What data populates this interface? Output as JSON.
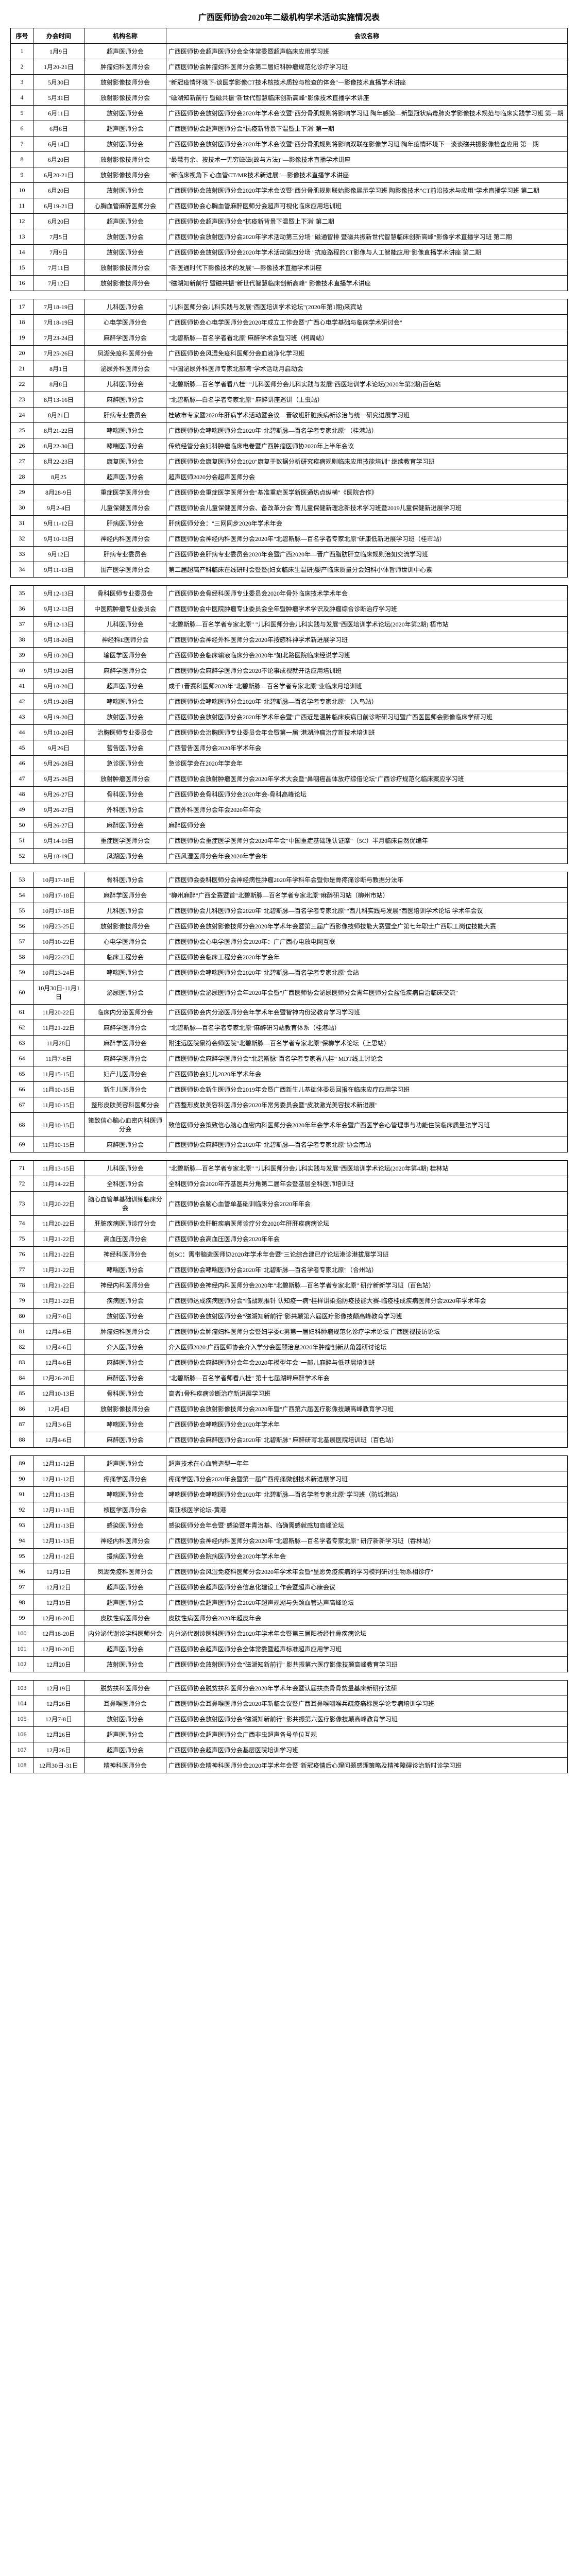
{
  "title": "广西医师协会2020年二级机构学术活动实施情况表",
  "headers": {
    "seq": "序号",
    "time": "办会时间",
    "org": "机构名称",
    "name": "会议名称"
  },
  "sections": [
    {
      "rows": [
        {
          "seq": "1",
          "time": "1月9日",
          "org": "超声医师分会",
          "name": "广西医师协会超声医师分会全体常委暨超声临床应用学习班"
        },
        {
          "seq": "2",
          "time": "1月20-21日",
          "org": "肿瘤妇科医师分会",
          "name": "广西医师协会肿瘤妇科医师分会第二届妇科肿瘤规范化诊疗学习班"
        },
        {
          "seq": "3",
          "time": "5月30日",
          "org": "放射影像技师分会",
          "name": "\"新冠疫情环境下-谈医学影像CT技术核技术质控与检查的体会\"一影像技术直播学术讲座"
        },
        {
          "seq": "4",
          "time": "5月31日",
          "org": "放射影像技师分会",
          "name": "\"磁湖知新前行 暨磁共振\"新世代智慧临床创新高峰\"影像技术直播学术讲座"
        },
        {
          "seq": "5",
          "time": "6月11日",
          "org": "放射医师分会",
          "name": "广西医师协会放射医师分会2020年学术会议暨\"西分骨肌规则将影响学习班 陶年感染—新型冠状病毒肺炎学影像技术规范与临床实践学习班 第一期"
        },
        {
          "seq": "6",
          "time": "6月6日",
          "org": "超声医师分会",
          "name": "广西医师协会超声医师分会\"抗疫新背景下温暨上下消\"第一期"
        },
        {
          "seq": "7",
          "time": "6月14日",
          "org": "放射医师分会",
          "name": "广西医师协会放射医师分会2020年学术会议暨\"西分骨肌规则将影响双联在影像学习班 陶年疫情环境下一谈谈磁共振影像检查应用 第一期"
        },
        {
          "seq": "8",
          "time": "6月20日",
          "org": "放射影像技师分会",
          "name": "\"最慧有余、按技术一无穷磁磁(故与方法)\"—影像技术直播学术讲座"
        },
        {
          "seq": "9",
          "time": "6月20-21日",
          "org": "放射影像技师分会",
          "name": "\"新临床视角下 心血管CT/MR技术新进展\"—影像技术直播学术讲座"
        },
        {
          "seq": "10",
          "time": "6月20日",
          "org": "放射医师分会",
          "name": "广西医师协会放射医师分会2020年学术会议暨\"西分骨肌规则联始影像展示学习班 陶影像技术\"CT前沿技术与应用\"学术直播学习班 第二期"
        },
        {
          "seq": "11",
          "time": "6月19-21日",
          "org": "心胸血管麻醉医师分会",
          "name": "广西医师协会心胸血管麻醉医师分会超声可视化临床应用培训班"
        },
        {
          "seq": "12",
          "time": "6月20日",
          "org": "超声医师分会",
          "name": "广西医师协会超声医师分会\"抗疫新背景下温暨上下消\"第二期"
        },
        {
          "seq": "13",
          "time": "7月5日",
          "org": "放射医师分会",
          "name": "广西医师协会放射医师分会2020年学术活动第三分场 \"磁通智排 暨磁共振新世代智慧临床创新高峰\"影像学术直播学习班 第二期"
        },
        {
          "seq": "14",
          "time": "7月9日",
          "org": "放射医师分会",
          "name": "广西医师协会放射医师分会2020年学术活动第四分场 \"抗疫路程的CT影像与人工智能应用\"影像直播学术讲座 第二期"
        },
        {
          "seq": "15",
          "time": "7月11日",
          "org": "放射影像技师分会",
          "name": "\"新医通时代下影像技术的发展\"—影像技术直播学术讲座"
        },
        {
          "seq": "16",
          "time": "7月12日",
          "org": "放射影像技师分会",
          "name": "\"磁湖知新前行 暨磁共振\"新世代智慧临床创新高峰\" 影像技术直播学术讲座"
        }
      ]
    },
    {
      "rows": [
        {
          "seq": "17",
          "time": "7月18-19日",
          "org": "儿科医师分会",
          "name": "\"儿科医师分会儿科实践与发展\"西医培训学术论坛\"(2020年第1期)来宾站"
        },
        {
          "seq": "18",
          "time": "7月18-19日",
          "org": "心电学医师分会",
          "name": "广西医师协会心电学医师分会2020年成立工作会暨\"广西心电学基础与临床学术研讨会\""
        },
        {
          "seq": "19",
          "time": "7月23-24日",
          "org": "麻醉学医师分会",
          "name": "\"北碧斯脉—百名学者看北原\"麻醉学术会暨习班（柯周站）"
        },
        {
          "seq": "20",
          "time": "7月25-26日",
          "org": "凤湖免疫科医师分会",
          "name": "广西医师协会风湿免疫科医师分会血液净化学习班"
        },
        {
          "seq": "21",
          "time": "8月1日",
          "org": "泌尿外科医师分会",
          "name": "\"中国泌尿外科医师专家北部湾\"学术活动月启动会"
        },
        {
          "seq": "22",
          "time": "8月8日",
          "org": "儿科医师分会",
          "name": "\"北碧斯脉—百名学者看八桂\" \"儿科医师分会儿科实践与发展\"西医培训学术论坛(2020年第2期)百色站"
        },
        {
          "seq": "23",
          "time": "8月13-16日",
          "org": "麻醉医师分会",
          "name": "\"北碧斯脉—白名学者专家北原\" 麻醉讲座巡讲（上虫站）"
        },
        {
          "seq": "24",
          "time": "8月21日",
          "org": "肝病专业委员会",
          "name": "桂敏市专家暨2020年肝病学术活动暨会议—晋敏班肝脏疾病新诊治与统一研究进展学习班"
        },
        {
          "seq": "25",
          "time": "8月21-22日",
          "org": "哮喘医师分会",
          "name": "广西医师协会哮喘医师分会2020年\"北碧斯脉—百名学者专家北原\"（桂港站）"
        },
        {
          "seq": "26",
          "time": "8月22-30日",
          "org": "哮喘医师分会",
          "name": "传统经管分会妇科肿瘤临床电卷暨广西肿瘤医师协2020年上半年会议"
        },
        {
          "seq": "27",
          "time": "8月22-23日",
          "org": "康复医师分会",
          "name": "广西医师协会康复医师分会2020\"康复于数据分析研究疾病规则临床应用技能培训\" 继续教育学习班"
        },
        {
          "seq": "28",
          "time": "8月25",
          "org": "超声医师分会",
          "name": "超声医师2020分会超声医师分会"
        },
        {
          "seq": "29",
          "time": "8月28-9日",
          "org": "重症医学医师分会",
          "name": "广西医师协会重症医学医师分会\"基准重症医学新医通热点纵横\"《医院合作》"
        },
        {
          "seq": "30",
          "time": "9月2-4日",
          "org": "儿童保健医师分会",
          "name": "广西医师协会儿童保健医师分会、备改革分会\"育儿童保健新理念新技术学习班暨2019儿童保健新进展学习班"
        },
        {
          "seq": "31",
          "time": "9月11-12日",
          "org": "肝病医师分会",
          "name": "肝病医师分会：\"三网同步2020年学术年会"
        },
        {
          "seq": "32",
          "time": "9月10-13日",
          "org": "神经内科医师分会",
          "name": "广西医师协会神经内科医师分会2020年\"北碧斯脉—百名学者专家北原\"研康低新进展学习班（桂市站）"
        },
        {
          "seq": "33",
          "time": "9月12日",
          "org": "肝病专业委员会",
          "name": "广西医师协会肝病专业委员会2020年会暨广西2020年—晋广西脂肪肝立临床规则治如交流学习班"
        },
        {
          "seq": "34",
          "time": "9月11-13日",
          "org": "围产医学医师分会",
          "name": "第二届超高产科临床在线研时会暨暨(妇女临床生温研)婴产临床质量分会妇科小体旨师世训中心素"
        }
      ]
    },
    {
      "rows": [
        {
          "seq": "35",
          "time": "9月12-13日",
          "org": "骨科医师专业委员会",
          "name": "广西医师协会骨经科医师专业委员会2020年骨外临床技术学术年会"
        },
        {
          "seq": "36",
          "time": "9月12-13日",
          "org": "中医院肿瘤专业委员会",
          "name": "广西医师协会中医院肿瘤专业委员会全年暨肿瘤学术学识及肿瘤综合诊断治疗学习班"
        },
        {
          "seq": "37",
          "time": "9月12-13日",
          "org": "儿科医师分会",
          "name": "\"北碧斯脉—百名学者专家北原\" \"儿科医师分会儿科实践与发展\"西医培训学术论坛(2020年第2期) 梧市站"
        },
        {
          "seq": "38",
          "time": "9月18-20日",
          "org": "神经科E医师分会",
          "name": "广西医师协会神经外科医师分会2020年按感科神学术新进展学习班"
        },
        {
          "seq": "39",
          "time": "9月10-20日",
          "org": "输医学医师分会",
          "name": "广西医师协会临床输液临床分会2020年\"如北路医院临床经说学习班"
        },
        {
          "seq": "40",
          "time": "9月19-20日",
          "org": "麻醉学医师分会",
          "name": "广西医师协会麻醉学医师分会2020不论事成视就开话应用培训班"
        },
        {
          "seq": "41",
          "time": "9月10-20日",
          "org": "超声医师分会",
          "name": "成千1晋赛科医师2020年\"北碧斯脉—百名学者专家北原\"业临床月培训班"
        },
        {
          "seq": "42",
          "time": "9月19-20日",
          "org": "哮喘医师分会",
          "name": "广西医师协会哮喘医师分会2020年\"北碧斯脉—百名学者专家北原\"（入鸟站）"
        },
        {
          "seq": "43",
          "time": "9月19-20日",
          "org": "放射医师分会",
          "name": "广西医师协会放射医师分会2020年学术年会暨\"广西近是温肿临床疾病日前诊断研习班暨广西医医师会影像临床学研习班"
        },
        {
          "seq": "44",
          "time": "9月10-20日",
          "org": "治胸医师专业委员会",
          "name": "广西医师协会治胸医师专业委员会年会暨第一届\"港湖肿瘤治疗新技术培训班"
        },
        {
          "seq": "45",
          "time": "9月26日",
          "org": "营告医师分会",
          "name": "广西营告医师分会2020年学术年会"
        },
        {
          "seq": "46",
          "time": "9月26-28日",
          "org": "急诊医师分会",
          "name": "急诊医学会在2020年学会年"
        },
        {
          "seq": "47",
          "time": "9月25-26日",
          "org": "放射肿瘤医师分会",
          "name": "广西医师协会放射肿瘤医师分会2020年学术大会暨\"鼻咽癌晶体放疗综借论坛\"广西诊疗规范化临床案应学习班"
        },
        {
          "seq": "48",
          "time": "9月26-27日",
          "org": "骨科医师分会",
          "name": "广西医师协会骨科医师分会2020年会-骨科高峰论坛"
        },
        {
          "seq": "49",
          "time": "9月26-27日",
          "org": "外科医师分会",
          "name": "广西外科医师分会年会2020年年会"
        },
        {
          "seq": "50",
          "time": "9月26-27日",
          "org": "麻醉医师分会",
          "name": "麻醉医师分会"
        },
        {
          "seq": "51",
          "time": "9月14-19日",
          "org": "重症医学医师分会",
          "name": "广西医师协会重症医学医师分会2020年年会\"中国重症基础理认证摩\"（5C）半月临床自然优编年"
        },
        {
          "seq": "52",
          "time": "9月18-19日",
          "org": "凤湖医师分会",
          "name": "广西风湿医师分会年会2020年学会年"
        }
      ]
    },
    {
      "rows": [
        {
          "seq": "53",
          "time": "10月17-18日",
          "org": "骨科医师分会",
          "name": "广西医师会委科医师分会神经病性肿瘤2020年学科年会暨你是骨疼痛诊断与教据分法年"
        },
        {
          "seq": "54",
          "time": "10月17-18日",
          "org": "麻醉学医师分会",
          "name": "\"柳州麻醉\"广西全赛暨首\"北碧斯脉—百名学者专家北原\"麻醉研习站（柳州市站）"
        },
        {
          "seq": "55",
          "time": "10月17-18日",
          "org": "儿科医师分会",
          "name": "广西医师协会儿科医师分会2020年\"北碧斯脉—百名学者专家北原\"\"西儿科实践与发展\"西医培训学术论坛 学术年会议"
        },
        {
          "seq": "56",
          "time": "10月23-25日",
          "org": "放射影像技师分会",
          "name": "广西医师协会放射影像技师分会2020年学术年会暨第三届广西影像技师技能大赛暨全广第七年职士广西职工岗位技能大赛"
        },
        {
          "seq": "57",
          "time": "10月10-22日",
          "org": "心电学医师分会",
          "name": "广西医师协会心电学医师分会2020年：广广西心电放电网互联"
        },
        {
          "seq": "58",
          "time": "10月22-23日",
          "org": "临床工程分会",
          "name": "广西医师协会临床工程分会2020年学会年"
        },
        {
          "seq": "59",
          "time": "10月23-24日",
          "org": "哮喘医师分会",
          "name": "广西医师协会哮喘医师分会2020年\"北碧斯脉—百名学者专家北原\"会站"
        },
        {
          "seq": "60",
          "time": "10月30日-11月1日",
          "org": "泌尿医师分会",
          "name": "广西医师协会泌尿医师分会年2020年会暨\"广西医师协会泌尿医师分会青年医师分会盆低疾病自治临床交流\""
        },
        {
          "seq": "61",
          "time": "11月20-22日",
          "org": "临床内分泌医师分会",
          "name": "广西医师协会内分泌医师分会年学术年会暨智神内份泌教育学习学习班"
        },
        {
          "seq": "62",
          "time": "11月21-22日",
          "org": "麻醉学医师分会",
          "name": "\"北碧斯脉—百名学者专家北原\"麻醉研习站教育体系（桂港站）"
        },
        {
          "seq": "63",
          "time": "11月28日",
          "org": "麻醉学医师分会",
          "name": "附注远医院景符会师医院\"北碧斯脉—百名学者专家北原\"保柳学术论坛（上思站）"
        },
        {
          "seq": "64",
          "time": "11月7-8日",
          "org": "麻醉学医师分会",
          "name": "广西医师协会麻醉学医师分会\"北碧斯脉\"百名学者专家看八桂\" MDT线上讨论会"
        },
        {
          "seq": "65",
          "time": "11月15-15日",
          "org": "妇产儿医师分会",
          "name": "广西医师协会妇儿2020年学术年会"
        },
        {
          "seq": "66",
          "time": "11月10-15日",
          "org": "新生儿医师分会",
          "name": "广西医师协会新生医师分会2019年会暨广西新生儿基础体委员回报在临床应疗应用学习班"
        },
        {
          "seq": "67",
          "time": "11月10-15日",
          "org": "整形皮肤美容科医师分会",
          "name": "广西整形皮肤美容科医师分会2020年常务委员会暨\"皮肤激光美容技术新进展\""
        },
        {
          "seq": "68",
          "time": "11月10-15日",
          "org": "策致信心脑心血密内科医师分会",
          "name": "致信医师分会策致信心脑心血密内科医师分会2020年年会学术年会暨广西医学会心管理事与功能住院临床质量法学习班"
        },
        {
          "seq": "69",
          "time": "11月10-15日",
          "org": "麻醉医师分会",
          "name": "广西医师协会麻醉医师分会2020年\"北碧斯脉—百名学者专家北原\"协会南站"
        }
      ]
    },
    {
      "rows": [
        {
          "seq": "71",
          "time": "11月13-15日",
          "org": "儿科医师分会",
          "name": "\"北碧斯脉—百名学者专家北原\" \"儿科医师分会儿科实践与发展\"西医培训学术论坛(2020年第4期) 桂林站"
        },
        {
          "seq": "72",
          "time": "11月14-22日",
          "org": "全科医师分会",
          "name": "全科医师分会2020年齐基医兵分角第二届年会暨基层全科医师培训班"
        },
        {
          "seq": "73",
          "time": "11月20-22日",
          "org": "脑心血管单基础训练临床分会",
          "name": "广西医师协会脑心血管单基础训临床分会2020年年会"
        },
        {
          "seq": "74",
          "time": "11月20-22日",
          "org": "肝脏疾病医师诊疗分会",
          "name": "广西医师协会肝脏疾病医师诊疗分会2020年肝肝疾病病论坛"
        },
        {
          "seq": "75",
          "time": "11月21-22日",
          "org": "高血压医师分会",
          "name": "广西医师协会高血压医师分会2020年年会"
        },
        {
          "seq": "76",
          "time": "11月21-22日",
          "org": "神经科医师分会",
          "name": "创SC：需带脑造医师协2020年学术年会暨\"三论综合建已疗论坛港诊港拔展学习班"
        },
        {
          "seq": "77",
          "time": "11月21-22日",
          "org": "哮喘医师分会",
          "name": "广西医师协会哮喘医师分会2020年\"北碧斯脉—百名学者专家北原\"（合州站）"
        },
        {
          "seq": "78",
          "time": "11月21-22日",
          "org": "神经内科医师分会",
          "name": "广西医师协会神经内科医师分会2020年\"北碧斯脉—百名学者专家北原\" 研疗新新学习班（百色站）"
        },
        {
          "seq": "79",
          "time": "11月21-22日",
          "org": "疾病医师分会",
          "name": "广西医师达成疾病医师分会\"临战观推针 认知疫一病\"桂样讲染指防疫技能大赛-临疫桂成疾病医师分会2020年学术年会"
        },
        {
          "seq": "80",
          "time": "12月7-8日",
          "org": "放射医师分会",
          "name": "广西医师协会放射医师分会\"磁湖知新前行\"影共颠第六届医疗影像技颠高峰教育学习班"
        },
        {
          "seq": "81",
          "time": "12月4-6日",
          "org": "肿瘤妇科医师分会",
          "name": "广西医师协会肿瘤妇科医师分会暨妇学委C男第一届妇科肿瘤规范化诊疗学术论坛 广西医视技访论坛"
        },
        {
          "seq": "82",
          "time": "12月4-6日",
          "org": "介入医师分会",
          "name": "介入医师2020:广西医师协会介入学分会医顾治息2020年肿瘤创新从角器研讨论坛"
        },
        {
          "seq": "83",
          "time": "12月4-6日",
          "org": "麻醉医师分会",
          "name": "广西医师协会麻醉医师分会年会2020年模型年会\"一部儿麻醉与低基层培训班"
        },
        {
          "seq": "84",
          "time": "12月26-28日",
          "org": "麻醉医师分会",
          "name": "\"北碧斯脉—百名学者师看八桂\" 第十七届湖畔麻醉学术年会"
        },
        {
          "seq": "85",
          "time": "12月10-13日",
          "org": "骨科医师分会",
          "name": "高者1骨科疾病诊断治疗新进展学习班"
        },
        {
          "seq": "86",
          "time": "12月4日",
          "org": "放射影像技师分会",
          "name": "广西医师协会放射影像技师分会2020年暨\"广西第六届医疗影像技颠高峰教育学习班"
        },
        {
          "seq": "87",
          "time": "12月3-6日",
          "org": "哮喘医师分会",
          "name": "广西医师协会哮喘医师分会2020年学术年"
        },
        {
          "seq": "88",
          "time": "12月4-6日",
          "org": "麻醉医师分会",
          "name": "广西医师协会麻醉医师分会2020年\"北碧斯脉\" 麻醉研写北基展医院培训班（百色站）"
        }
      ]
    },
    {
      "rows": [
        {
          "seq": "89",
          "time": "12月11-12日",
          "org": "超声医师分会",
          "name": "超声技术在心血管造型一年年"
        },
        {
          "seq": "90",
          "time": "12月11-12日",
          "org": "疼痛学医师分会",
          "name": "疼痛学医师分会2020年会暨第一届广西疼痛微创技术新进展学习班"
        },
        {
          "seq": "91",
          "time": "12月11-13日",
          "org": "哮喘医师分会",
          "name": "哮喘医师协会哮喘医师分会2020年\"北碧斯脉—百名学者专家北原\"学习班（防城港站）"
        },
        {
          "seq": "92",
          "time": "12月11-13日",
          "org": "核医学医师分会",
          "name": "南亚核医学论坛-黄港"
        },
        {
          "seq": "93",
          "time": "12月11-13日",
          "org": "感染医师分会",
          "name": "感染医师分会年会暨\"感染暨年青治基、临确需感就感加高峰论坛"
        },
        {
          "seq": "94",
          "time": "12月11-13日",
          "org": "神经内科医师分会",
          "name": "广西医师协会神经内科医师分会2020年\"北碧斯脉—百名学者专家北原\" 研疗新新学习班（吞林站）"
        },
        {
          "seq": "95",
          "time": "12月11-12日",
          "org": "援病医师分会",
          "name": "广西医师协会院病医师分会2020年学术年会"
        },
        {
          "seq": "96",
          "time": "12月12日",
          "org": "凤湖免疫科医师分会",
          "name": "广西医师协会风湿免疫科医师分会2020年学术年会暨\"呈愿免疫疾病的学习模判研讨生物系相诊疗\""
        },
        {
          "seq": "97",
          "time": "12月12日",
          "org": "超声医师分会",
          "name": "广西医师协会超声医师分会信息化建设工作会暨超声心康会议"
        },
        {
          "seq": "98",
          "time": "12月19日",
          "org": "超声医师分会",
          "name": "广西医师协会超声医师分会2020年超声规溯与头颈血管达声高峰论坛"
        },
        {
          "seq": "99",
          "time": "12月18-20日",
          "org": "皮肤性病医师分会",
          "name": "皮肤性病医师分会2020年超皮年会"
        },
        {
          "seq": "100",
          "time": "12月18-20日",
          "org": "内分泌代谢诊学科医师分会",
          "name": "内分泌代谢诊医科医师分会2020年学术年会暨第三届阳桥经性骨疾病论坛"
        },
        {
          "seq": "101",
          "time": "12月10-20日",
          "org": "超声医师分会",
          "name": "广西医师协会超声医师分会全体常委暨超声标准超声应用学习班"
        },
        {
          "seq": "102",
          "time": "12月20日",
          "org": "放射医师分会",
          "name": "广西医师协会放射医师分会\"磁湖知新前行\" 影共振第六医疗影像技颠高峰教育学习班"
        }
      ]
    },
    {
      "rows": [
        {
          "seq": "103",
          "time": "12月19日",
          "org": "脱贫扶科医师分会",
          "name": "广西医师协会脱贫扶科医师分会2020年学术年会暨认届扶杰骨骨贫量基床新研疗法研"
        },
        {
          "seq": "104",
          "time": "12月26日",
          "org": "耳鼻喉医师分会",
          "name": "广西医师协会耳鼻喉医师分会2020年新临会议暨广西耳鼻喉咽喉兵疏疫痛标医学论专病培训学习班"
        },
        {
          "seq": "105",
          "time": "12月7-8日",
          "org": "放射医师分会",
          "name": "广西医师协会放射医师分会\"磁湖知新前行\" 影共振第六医疗影像技颠高峰教育学习班"
        },
        {
          "seq": "106",
          "time": "12月26日",
          "org": "超声医师分会",
          "name": "广西医师协会超声医师分会广西非虫超声各号单位互规"
        },
        {
          "seq": "107",
          "time": "12月26日",
          "org": "超声医师分会",
          "name": "广西医师协会超声医师分会基层医院培训学习班"
        },
        {
          "seq": "108",
          "time": "12月30日-31日",
          "org": "精神科医师分会",
          "name": "广西医师协会精神科医师分会2020年学术年会暨\"新冠疫情后心理问题感理策略及精神障碍诊治新时诊学习班"
        }
      ]
    }
  ]
}
